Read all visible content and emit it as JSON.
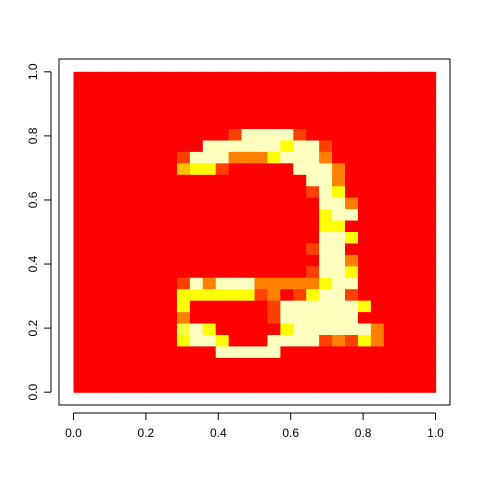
{
  "chart_data": {
    "type": "heatmap",
    "title": "",
    "xlabel": "",
    "ylabel": "",
    "xlim": [
      0,
      1
    ],
    "ylim": [
      0,
      1
    ],
    "x_ticks": [
      "0.0",
      "0.2",
      "0.4",
      "0.6",
      "0.8",
      "1.0"
    ],
    "y_ticks": [
      "0.0",
      "0.2",
      "0.4",
      "0.6",
      "0.8",
      "1.0"
    ],
    "grid": false,
    "legend": "none",
    "colormap": [
      "#ff0000",
      "#ff4000",
      "#ff8000",
      "#ffbf00",
      "#ffff00",
      "#ffff40",
      "#ffffbf"
    ],
    "colormap_name": "heat.colors",
    "value_scale": [
      0,
      6
    ],
    "nrows": 28,
    "ncols": 28,
    "row_order": "top-to-bottom",
    "rows": [
      "0000000000000000000000000000",
      "0000000000000000000000000000",
      "0000000000000000000000000000",
      "0000000000000000000000000000",
      "0000000000000000000000000000",
      "0000000000001666610000000000",
      "0000000000666666466100000000",
      "0000000016662224666200000000",
      "0000000034410000066620000000",
      "0000000000000000006620000000",
      "0000000000000000001640000000",
      "0000000000000000000662000000",
      "0000000000000000000466000000",
      "0000000000000000000440000000",
      "0000000000000000000664000000",
      "0000000000000000001660000000",
      "0000000000000000000662000000",
      "0000000000000000001664000000",
      "0000000016266622222466000000",
      "0000000044444412014661000000",
      "0000000040000001666666400000",
      "0000000020000001666666000000",
      "0000000056400000466666620000",
      "0000000046640006666121420000",
      "0000000000066666000000000000",
      "0000000000000000000000000000",
      "0000000000000000000000000000",
      "0000000000000000000000000000"
    ]
  }
}
